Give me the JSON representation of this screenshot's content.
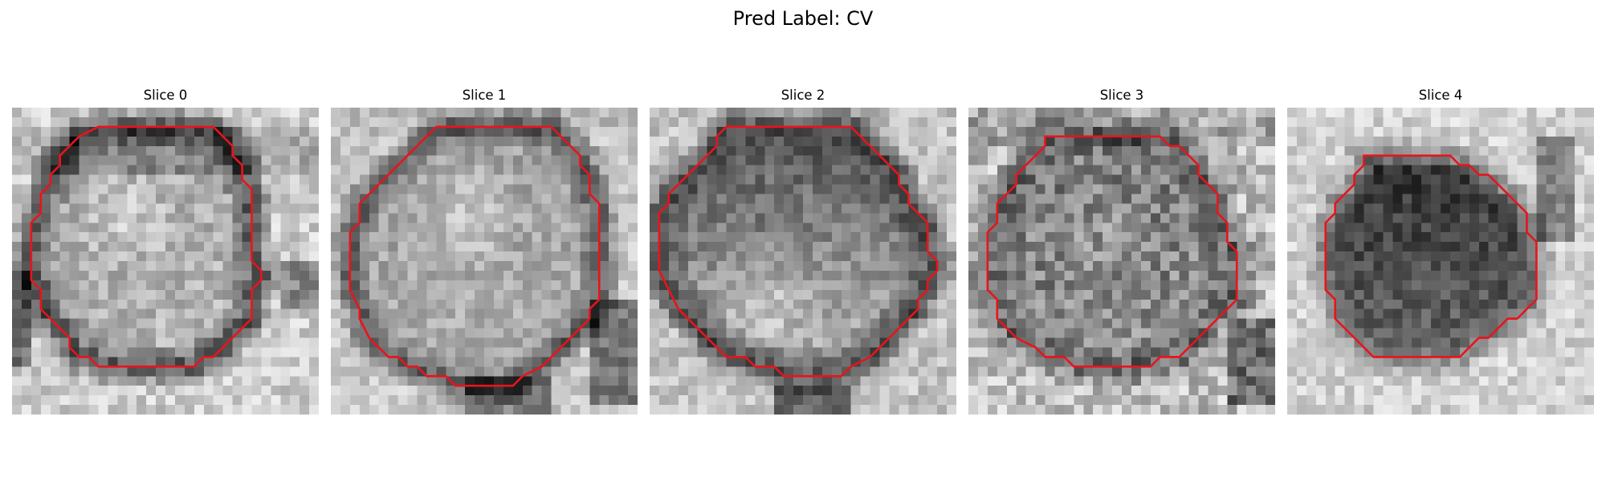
{
  "figure": {
    "title": "Pred Label: CV"
  },
  "panels": [
    {
      "title": "Slice 0"
    },
    {
      "title": "Slice 1"
    },
    {
      "title": "Slice 2"
    },
    {
      "title": "Slice 3"
    },
    {
      "title": "Slice 4"
    }
  ],
  "colors": {
    "contour": "#e8141c",
    "background": "#ffffff"
  }
}
